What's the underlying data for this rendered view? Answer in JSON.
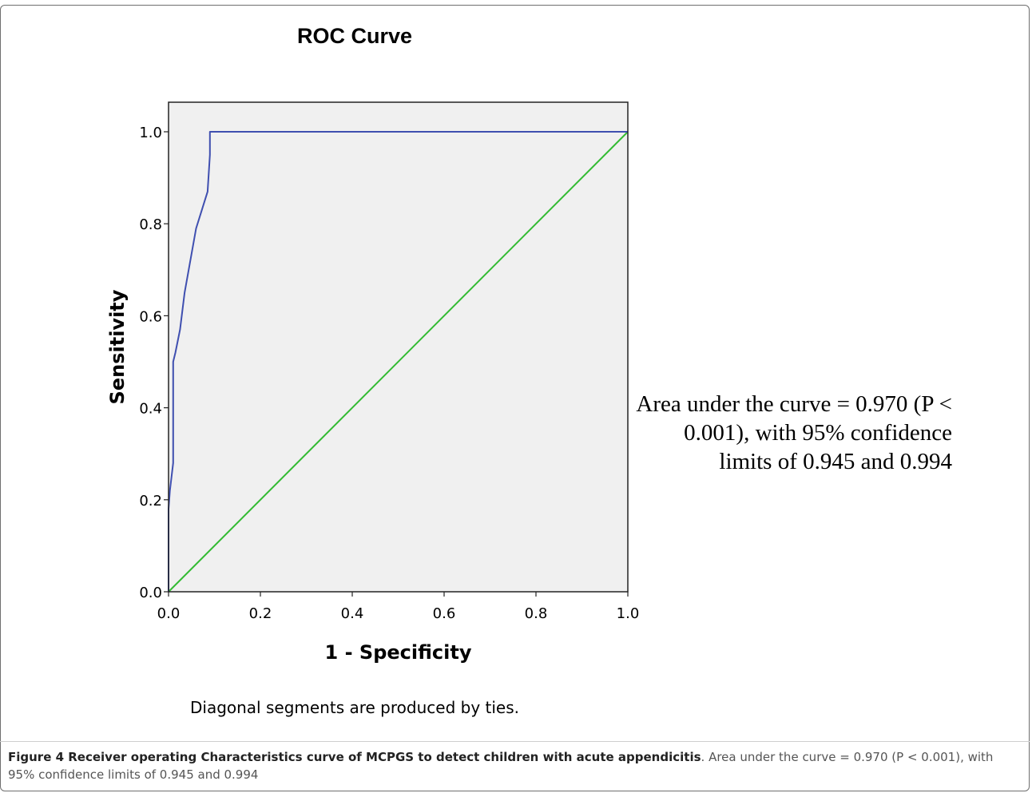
{
  "chart_data": {
    "type": "line",
    "title": "ROC Curve",
    "xlabel": "1 - Specificity",
    "ylabel": "Sensitivity",
    "xlim": [
      0,
      1
    ],
    "ylim": [
      0,
      1
    ],
    "xticks": [
      "0.0",
      "0.2",
      "0.4",
      "0.6",
      "0.8",
      "1.0"
    ],
    "yticks": [
      "0.0",
      "0.2",
      "0.4",
      "0.6",
      "0.8",
      "1.0"
    ],
    "grid": false,
    "series": [
      {
        "color": "#3f4fb0",
        "x": [
          0.0,
          0.0,
          0.003,
          0.01,
          0.01,
          0.015,
          0.025,
          0.035,
          0.06,
          0.085,
          0.09,
          0.09,
          0.3,
          1.0
        ],
        "y": [
          0.0,
          0.18,
          0.22,
          0.28,
          0.5,
          0.52,
          0.57,
          0.65,
          0.79,
          0.87,
          0.95,
          1.0,
          1.0,
          1.0
        ]
      },
      {
        "color": "#33bb33",
        "x": [
          0.0,
          1.0
        ],
        "y": [
          0.0,
          1.0
        ]
      }
    ],
    "annotation": "Area under the curve = 0.970 (P < 0.001), with 95% confidence limits of 0.945 and 0.994",
    "footnote": "Diagonal segments are produced by ties."
  },
  "caption": {
    "label": "Figure 4 Receiver operating Characteristics curve of MCPGS to detect children with acute appendicitis",
    "text": ". Area under the curve = 0.970 (P < 0.001), with 95% confidence limits of 0.945 and 0.994"
  },
  "colors": {
    "plot_background": "#f0f0f0",
    "roc_line": "#3f4fb0",
    "reference_line": "#33bb33"
  }
}
